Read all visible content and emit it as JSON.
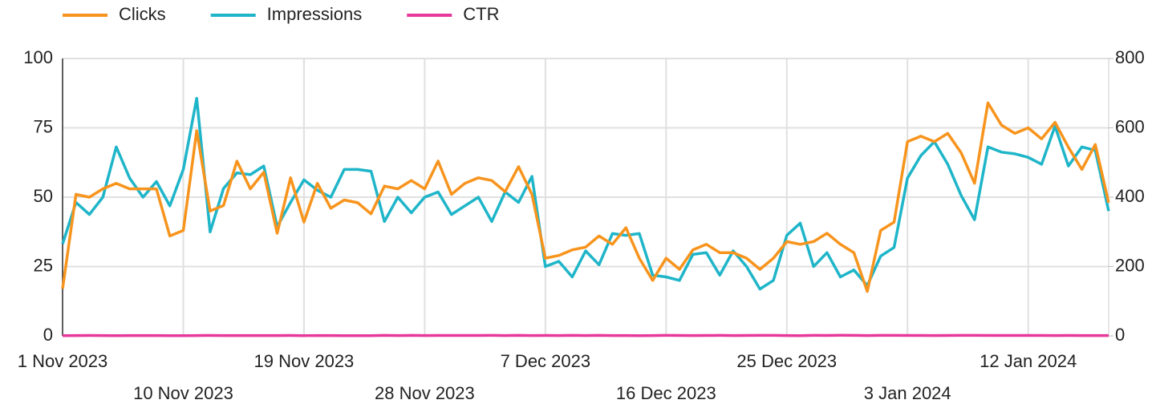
{
  "chart_data": {
    "type": "line",
    "x": [
      "2023-11-01",
      "2023-11-02",
      "2023-11-03",
      "2023-11-04",
      "2023-11-05",
      "2023-11-06",
      "2023-11-07",
      "2023-11-08",
      "2023-11-09",
      "2023-11-10",
      "2023-11-11",
      "2023-11-12",
      "2023-11-13",
      "2023-11-14",
      "2023-11-15",
      "2023-11-16",
      "2023-11-17",
      "2023-11-18",
      "2023-11-19",
      "2023-11-20",
      "2023-11-21",
      "2023-11-22",
      "2023-11-23",
      "2023-11-24",
      "2023-11-25",
      "2023-11-26",
      "2023-11-27",
      "2023-11-28",
      "2023-11-29",
      "2023-11-30",
      "2023-12-01",
      "2023-12-02",
      "2023-12-03",
      "2023-12-04",
      "2023-12-05",
      "2023-12-06",
      "2023-12-07",
      "2023-12-08",
      "2023-12-09",
      "2023-12-10",
      "2023-12-11",
      "2023-12-12",
      "2023-12-13",
      "2023-12-14",
      "2023-12-15",
      "2023-12-16",
      "2023-12-17",
      "2023-12-18",
      "2023-12-19",
      "2023-12-20",
      "2023-12-21",
      "2023-12-22",
      "2023-12-23",
      "2023-12-24",
      "2023-12-25",
      "2023-12-26",
      "2023-12-27",
      "2023-12-28",
      "2023-12-29",
      "2023-12-30",
      "2023-12-31",
      "2024-01-01",
      "2024-01-02",
      "2024-01-03",
      "2024-01-04",
      "2024-01-05",
      "2024-01-06",
      "2024-01-07",
      "2024-01-08",
      "2024-01-09",
      "2024-01-10",
      "2024-01-11",
      "2024-01-12",
      "2024-01-13",
      "2024-01-14",
      "2024-01-15",
      "2024-01-16",
      "2024-01-17",
      "2024-01-18"
    ],
    "xlim": [
      "2023-11-01",
      "2024-01-18"
    ],
    "xticks": [
      {
        "value": "2023-11-01",
        "label": "1 Nov 2023"
      },
      {
        "value": "2023-11-10",
        "label": "10 Nov 2023"
      },
      {
        "value": "2023-11-19",
        "label": "19 Nov 2023"
      },
      {
        "value": "2023-11-28",
        "label": "28 Nov 2023"
      },
      {
        "value": "2023-12-07",
        "label": "7 Dec 2023"
      },
      {
        "value": "2023-12-16",
        "label": "16 Dec 2023"
      },
      {
        "value": "2023-12-25",
        "label": "25 Dec 2023"
      },
      {
        "value": "2024-01-03",
        "label": "3 Jan 2024"
      },
      {
        "value": "2024-01-12",
        "label": "12 Jan 2024"
      }
    ],
    "ylim": [
      0,
      100
    ],
    "yticks": [
      0,
      25,
      50,
      75,
      100
    ],
    "y2lim": [
      0,
      800
    ],
    "y2ticks": [
      0,
      200,
      400,
      600,
      800
    ],
    "grid": true,
    "legend": "top-left",
    "series": [
      {
        "name": "Clicks",
        "color": "#f7941d",
        "values": [
          17,
          51,
          50,
          53,
          55,
          53,
          53,
          53,
          36,
          38,
          74,
          45,
          47,
          63,
          53,
          59,
          37,
          57,
          41,
          55,
          46,
          49,
          48,
          44,
          54,
          53,
          56,
          53,
          63,
          51,
          55,
          57,
          56,
          52,
          61,
          51,
          28,
          29,
          31,
          32,
          36,
          33,
          39,
          28,
          20,
          28,
          24,
          31,
          33,
          30,
          30,
          28,
          24,
          28,
          34,
          33,
          34,
          37,
          33,
          30,
          16,
          38,
          41,
          70,
          72,
          70,
          73,
          66,
          55,
          84,
          76,
          73,
          75,
          71,
          77,
          68,
          60,
          69,
          48
        ]
      },
      {
        "name": "Impressions",
        "color": "#1fb5c9",
        "axis": "y2",
        "values": [
          265,
          385,
          350,
          400,
          545,
          455,
          400,
          445,
          375,
          480,
          685,
          300,
          425,
          470,
          465,
          490,
          315,
          385,
          450,
          420,
          400,
          480,
          480,
          475,
          330,
          400,
          355,
          400,
          415,
          350,
          375,
          400,
          330,
          415,
          385,
          460,
          200,
          215,
          170,
          245,
          205,
          295,
          290,
          295,
          175,
          170,
          160,
          235,
          240,
          175,
          245,
          200,
          135,
          160,
          290,
          325,
          200,
          240,
          170,
          190,
          145,
          230,
          255,
          455,
          520,
          560,
          495,
          405,
          335,
          545,
          530,
          525,
          515,
          495,
          605,
          490,
          545,
          535,
          360
        ]
      },
      {
        "name": "CTR",
        "color": "#e6399b",
        "values": [
          0.06,
          0.13,
          0.14,
          0.13,
          0.1,
          0.12,
          0.13,
          0.12,
          0.1,
          0.08,
          0.11,
          0.15,
          0.11,
          0.13,
          0.11,
          0.12,
          0.12,
          0.15,
          0.09,
          0.13,
          0.12,
          0.1,
          0.1,
          0.09,
          0.16,
          0.13,
          0.16,
          0.13,
          0.15,
          0.15,
          0.15,
          0.14,
          0.17,
          0.13,
          0.16,
          0.11,
          0.14,
          0.13,
          0.18,
          0.13,
          0.18,
          0.11,
          0.13,
          0.09,
          0.11,
          0.16,
          0.15,
          0.13,
          0.14,
          0.17,
          0.12,
          0.14,
          0.18,
          0.18,
          0.12,
          0.1,
          0.17,
          0.15,
          0.19,
          0.16,
          0.11,
          0.17,
          0.16,
          0.15,
          0.14,
          0.13,
          0.15,
          0.16,
          0.16,
          0.15,
          0.14,
          0.14,
          0.15,
          0.14,
          0.13,
          0.14,
          0.11,
          0.13,
          0.13
        ]
      }
    ]
  }
}
